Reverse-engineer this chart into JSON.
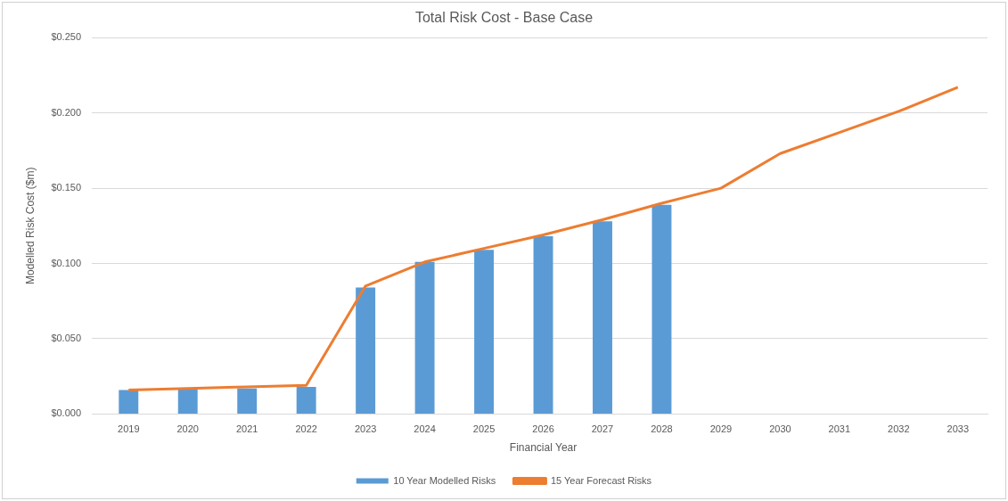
{
  "chart_data": {
    "type": "bar",
    "title": "Total Risk Cost - Base Case",
    "xlabel": "Financial Year",
    "ylabel": "Modelled Risk Cost ($m)",
    "categories": [
      "2019",
      "2020",
      "2021",
      "2022",
      "2023",
      "2024",
      "2025",
      "2026",
      "2027",
      "2028",
      "2029",
      "2030",
      "2031",
      "2032",
      "2033"
    ],
    "series": [
      {
        "name": "10 Year Modelled Risks",
        "color": "#5b9bd5",
        "values": [
          0.016,
          0.0165,
          0.017,
          0.018,
          0.084,
          0.101,
          0.109,
          0.118,
          0.128,
          0.139,
          null,
          null,
          null,
          null,
          null
        ]
      },
      {
        "name": "15 Year Forecast Risks",
        "type": "line",
        "color": "#ed7d31",
        "values": [
          0.016,
          0.017,
          0.018,
          0.019,
          0.085,
          0.101,
          0.11,
          0.119,
          0.129,
          0.14,
          0.15,
          0.173,
          0.187,
          0.201,
          0.217
        ]
      }
    ],
    "ylim": [
      0,
      0.25
    ],
    "yticks": [
      {
        "value": 0,
        "label": "$0.000"
      },
      {
        "value": 0.05,
        "label": "$0.050"
      },
      {
        "value": 0.1,
        "label": "$0.100"
      },
      {
        "value": 0.15,
        "label": "$0.150"
      },
      {
        "value": 0.2,
        "label": "$0.200"
      },
      {
        "value": 0.25,
        "label": "$0.250"
      }
    ],
    "grid": "y",
    "legend": "bottom",
    "marker": "none"
  }
}
